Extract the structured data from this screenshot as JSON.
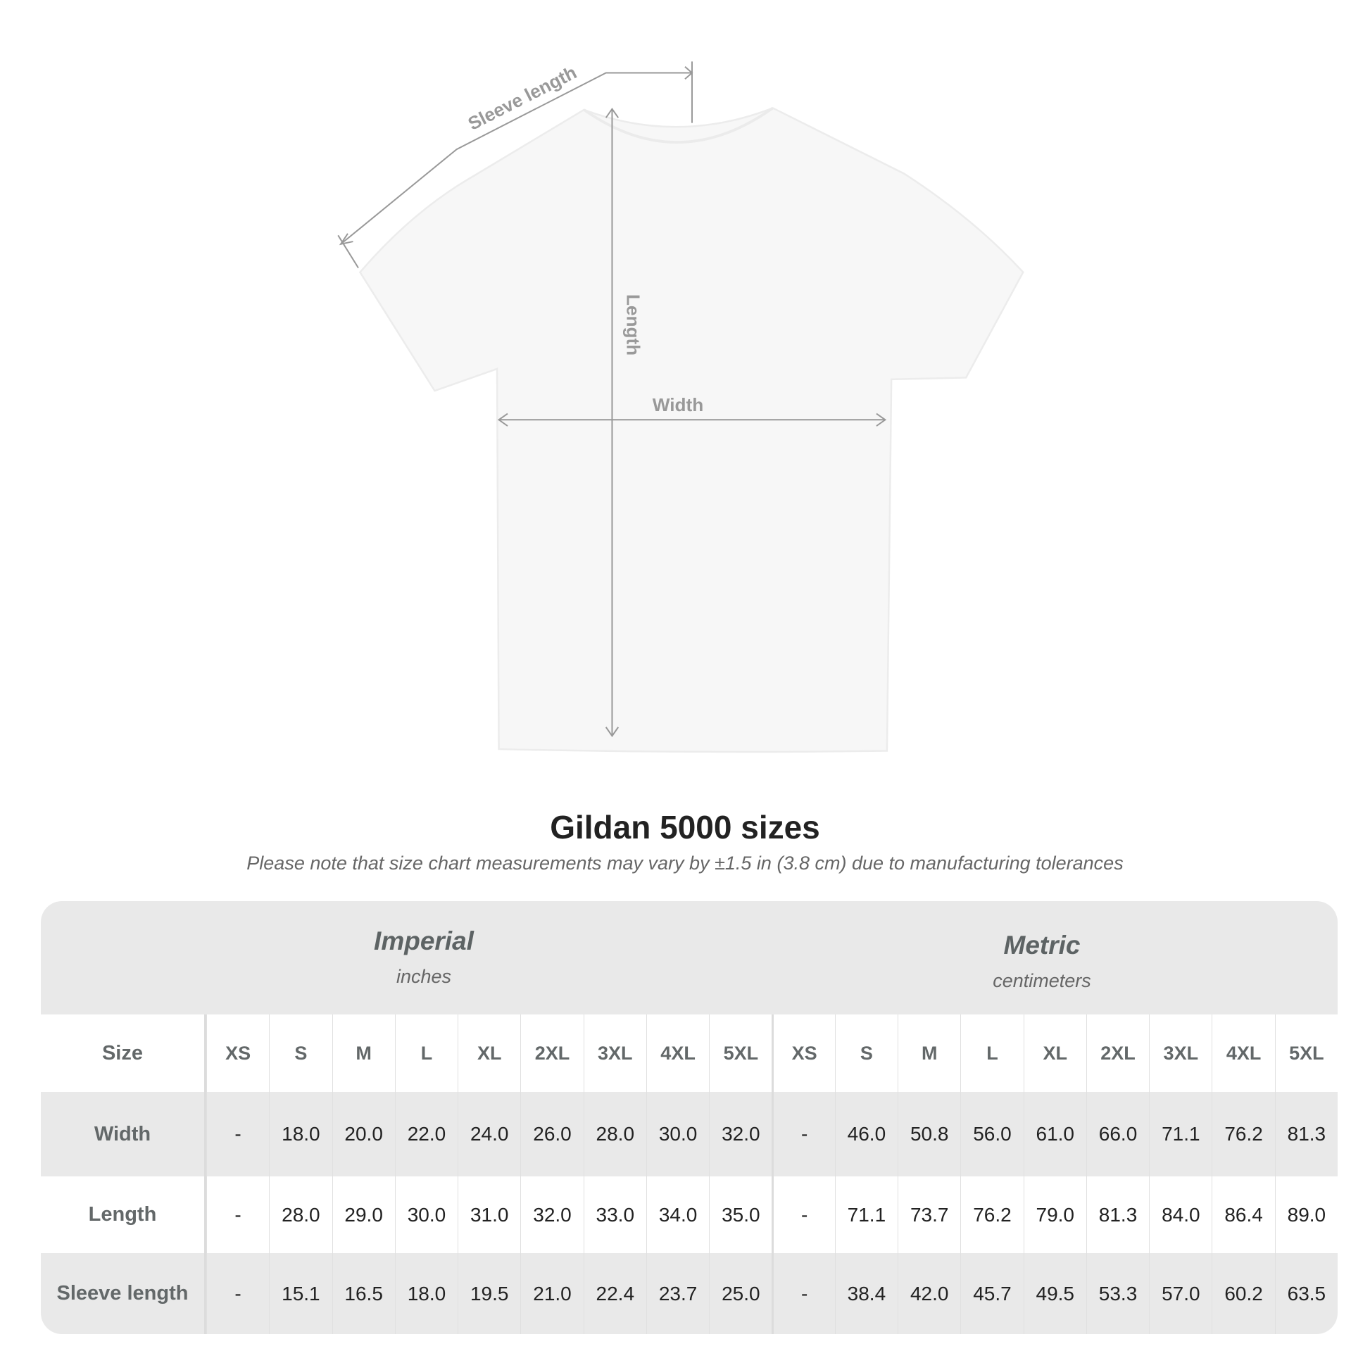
{
  "diagram": {
    "sleeve_label": "Sleeve length",
    "length_label": "Length",
    "width_label": "Width"
  },
  "title": "Gildan 5000 sizes",
  "note": "Please note that size chart measurements may vary by ±1.5 in (3.8 cm) due to manufacturing tolerances",
  "imperial": {
    "title": "Imperial",
    "unit": "inches"
  },
  "metric": {
    "title": "Metric",
    "unit": "centimeters"
  },
  "size_label": "Size",
  "sizes": [
    "XS",
    "S",
    "M",
    "L",
    "XL",
    "2XL",
    "3XL",
    "4XL",
    "5XL"
  ],
  "rows": [
    {
      "label": "Width",
      "imperial": [
        "-",
        "18.0",
        "20.0",
        "22.0",
        "24.0",
        "26.0",
        "28.0",
        "30.0",
        "32.0"
      ],
      "metric": [
        "-",
        "46.0",
        "50.8",
        "56.0",
        "61.0",
        "66.0",
        "71.1",
        "76.2",
        "81.3"
      ]
    },
    {
      "label": "Length",
      "imperial": [
        "-",
        "28.0",
        "29.0",
        "30.0",
        "31.0",
        "32.0",
        "33.0",
        "34.0",
        "35.0"
      ],
      "metric": [
        "-",
        "71.1",
        "73.7",
        "76.2",
        "79.0",
        "81.3",
        "84.0",
        "86.4",
        "89.0"
      ]
    },
    {
      "label": "Sleeve length",
      "imperial": [
        "-",
        "15.1",
        "16.5",
        "18.0",
        "19.5",
        "21.0",
        "22.4",
        "23.7",
        "25.0"
      ],
      "metric": [
        "-",
        "38.4",
        "42.0",
        "45.7",
        "49.5",
        "53.3",
        "57.0",
        "60.2",
        "63.5"
      ]
    }
  ],
  "colors": {
    "header_bg": "#e9e9e9",
    "label_text": "#636869",
    "value_text": "#222222",
    "measure_line": "#999999"
  }
}
